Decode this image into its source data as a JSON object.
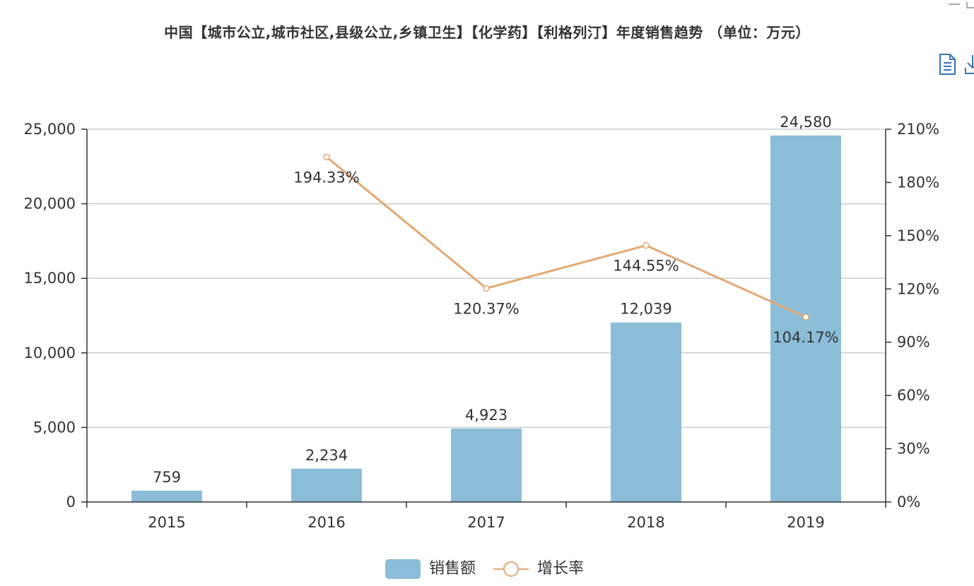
{
  "title": "中国【城市公立,城市社区,县级公立,乡镇卫生】【化学药】【利格列汀】年度销售趋势 （单位：万元）",
  "toolbox": {
    "data_view_icon": "document-icon",
    "save_icon": "download-icon"
  },
  "colors": {
    "bar": "#8bbdd9",
    "line": "#e3a873",
    "axis": "#333333",
    "grid": "#cccccc"
  },
  "legend": {
    "bar_label": "销售额",
    "line_label": "增长率"
  },
  "chart_data": {
    "type": "bar",
    "categories": [
      "2015",
      "2016",
      "2017",
      "2018",
      "2019"
    ],
    "series": [
      {
        "name": "销售额",
        "type": "bar",
        "axis": "left",
        "values": [
          759,
          2234,
          4923,
          12039,
          24580
        ],
        "labels": [
          "759",
          "2,234",
          "4,923",
          "12,039",
          "24,580"
        ]
      },
      {
        "name": "增长率",
        "type": "line",
        "axis": "right",
        "values": [
          null,
          194.33,
          120.37,
          144.55,
          104.17
        ],
        "labels": [
          "",
          "194.33%",
          "120.37%",
          "144.55%",
          "104.17%"
        ]
      }
    ],
    "y_left": {
      "ylim": [
        0,
        25000
      ],
      "ticks": [
        "0",
        "5,000",
        "10,000",
        "15,000",
        "20,000",
        "25,000"
      ]
    },
    "y_right": {
      "ylim": [
        0,
        210
      ],
      "ticks": [
        "0%",
        "30%",
        "60%",
        "90%",
        "120%",
        "150%",
        "180%",
        "210%"
      ]
    },
    "grid": true,
    "legend_position": "bottom-center"
  }
}
